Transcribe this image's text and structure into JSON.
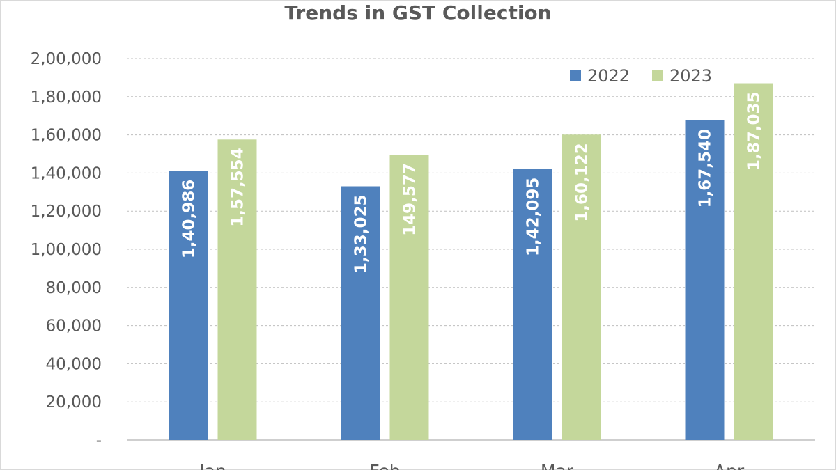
{
  "chart_data": {
    "type": "bar",
    "title": "Trends in GST Collection",
    "categories": [
      "Jan",
      "Feb",
      "Mar",
      "Apr"
    ],
    "series": [
      {
        "name": "2022",
        "color": "#4f81bd",
        "values": [
          140986,
          133025,
          142095,
          167540
        ],
        "labels": [
          "1,40,986",
          "1,33,025",
          "1,42,095",
          "1,67,540"
        ]
      },
      {
        "name": "2023",
        "color": "#c4d79b",
        "values": [
          157554,
          149577,
          160122,
          187035
        ],
        "labels": [
          "1,57,554",
          "149,577",
          "1,60,122",
          "1,87,035"
        ]
      }
    ],
    "ylim": [
      0,
      200000
    ],
    "yticks": [
      {
        "value": 0,
        "label": "-"
      },
      {
        "value": 20000,
        "label": "20,000"
      },
      {
        "value": 40000,
        "label": "40,000"
      },
      {
        "value": 60000,
        "label": "60,000"
      },
      {
        "value": 80000,
        "label": "80,000"
      },
      {
        "value": 100000,
        "label": "1,00,000"
      },
      {
        "value": 120000,
        "label": "1,20,000"
      },
      {
        "value": 140000,
        "label": "1,40,000"
      },
      {
        "value": 160000,
        "label": "1,60,000"
      },
      {
        "value": 180000,
        "label": "1,80,000"
      },
      {
        "value": 200000,
        "label": "2,00,000"
      }
    ],
    "grid": true,
    "legend_position": "top-right",
    "xlabel": "",
    "ylabel": ""
  }
}
